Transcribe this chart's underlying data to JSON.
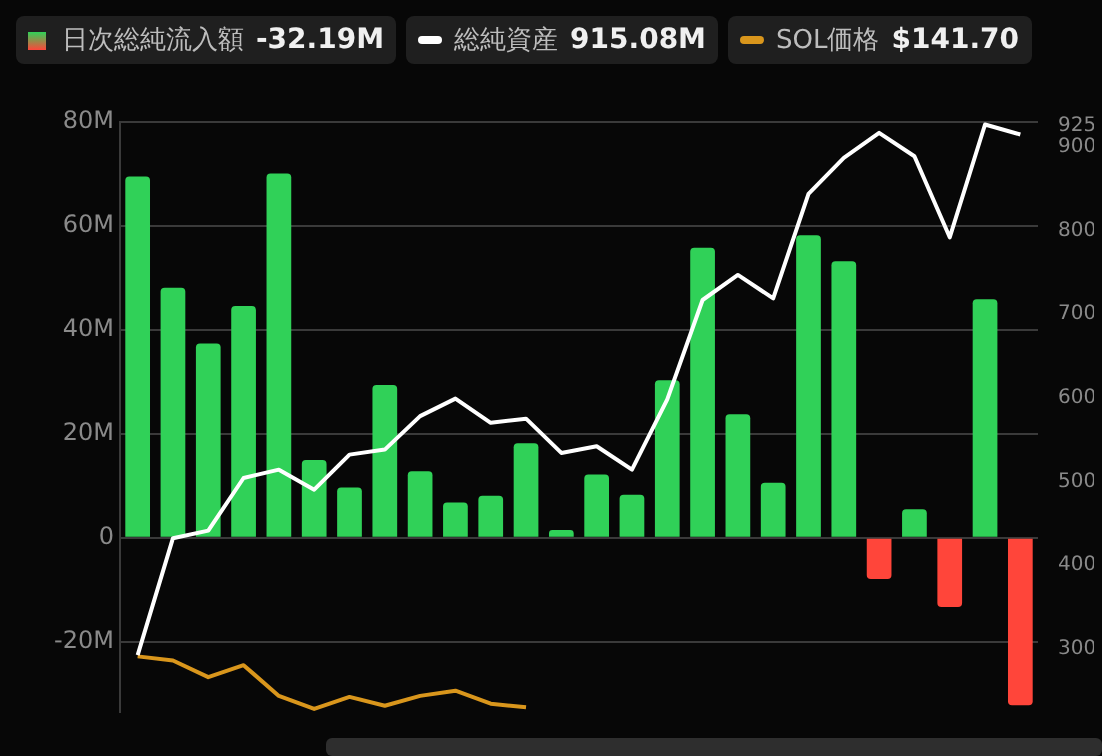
{
  "chart_data": {
    "type": "bar",
    "categories": [
      null,
      null,
      null,
      null,
      null,
      null,
      null,
      null,
      null,
      null,
      null,
      null,
      null,
      null,
      null,
      null,
      null,
      null,
      null,
      null,
      null,
      null,
      null,
      null,
      null,
      null
    ],
    "series": [
      {
        "name": "日次総純流入額",
        "values": [
          69.5,
          48.1,
          37.4,
          44.6,
          70.1,
          15.0,
          9.7,
          29.4,
          12.8,
          6.8,
          8.1,
          18.2,
          1.5,
          12.2,
          8.3,
          30.3,
          55.8,
          23.8,
          10.6,
          58.2,
          53.2,
          -7.9,
          5.5,
          -13.3,
          45.9,
          -32.19
        ],
        "colors": [
          "#30d158",
          "#30d158",
          "#30d158",
          "#30d158",
          "#30d158",
          "#30d158",
          "#30d158",
          "#30d158",
          "#30d158",
          "#30d158",
          "#30d158",
          "#30d158",
          "#30d158",
          "#30d158",
          "#30d158",
          "#30d158",
          "#30d158",
          "#30d158",
          "#30d158",
          "#30d158",
          "#30d158",
          "#ff453a",
          "#30d158",
          "#ff453a",
          "#30d158",
          "#ff453a"
        ]
      },
      {
        "name": "総純資産",
        "type": "line",
        "axis": "y2",
        "color": "#ffffff",
        "values": [
          292,
          432,
          441,
          504,
          514,
          490,
          532,
          538,
          578,
          599,
          570,
          575,
          534,
          542,
          514,
          598,
          717,
          747,
          719,
          844,
          887,
          917,
          889,
          792,
          927,
          915.08
        ]
      },
      {
        "name": "SOL価格",
        "type": "line",
        "color": "#d9961c",
        "values": [
          -22.8,
          -23.6,
          -26.8,
          -24.5,
          -30.4,
          -32.9,
          -30.6,
          -32.3,
          -30.4,
          -29.4,
          -31.9,
          -32.6,
          null,
          null,
          null,
          null,
          null,
          null,
          null,
          null,
          null,
          null,
          null,
          null,
          null,
          null
        ]
      }
    ],
    "ylim": [
      -33.5,
      80
    ],
    "yticks": [
      {
        "value": -20,
        "label": "-20M"
      },
      {
        "value": 0,
        "label": "0"
      },
      {
        "value": 20,
        "label": "20M"
      },
      {
        "value": 40,
        "label": "40M"
      },
      {
        "value": 60,
        "label": "60M"
      },
      {
        "value": 80,
        "label": "80M"
      }
    ],
    "y2lim": [
      224,
      930
    ],
    "y2ticks": [
      300,
      400,
      500,
      600,
      700,
      800,
      900,
      925
    ],
    "annotations": [
      "-32.19M",
      "915.08M",
      "$141.70"
    ],
    "grid": "y",
    "legend": "top left",
    "marker": "none"
  }
}
